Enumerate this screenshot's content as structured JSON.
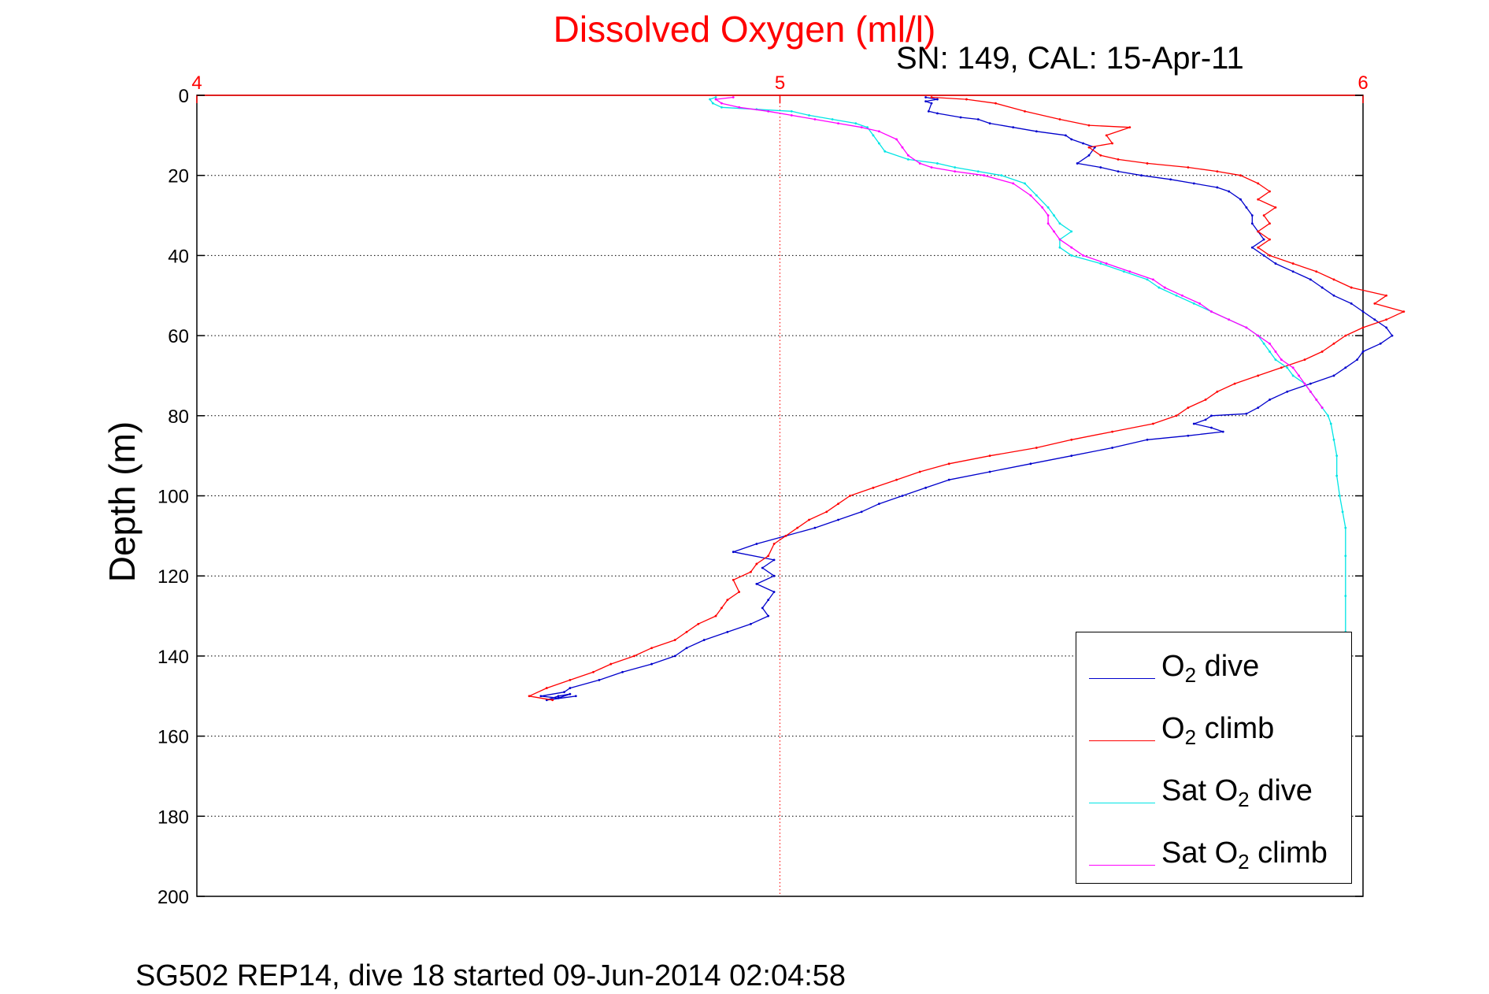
{
  "chart_data": {
    "type": "line",
    "title": "Dissolved Oxygen (ml/l)",
    "subtitle": "SN: 149, CAL: 15-Apr-11",
    "ylabel": "Depth (m)",
    "footer": "SG502 REP14, dive 18 started 09-Jun-2014 02:04:58",
    "xlim": [
      4,
      6
    ],
    "ylim": [
      0,
      200
    ],
    "y_reversed": true,
    "x_axis_position": "top",
    "x_ticks": [
      4,
      5,
      6
    ],
    "y_ticks": [
      0,
      20,
      40,
      60,
      80,
      100,
      120,
      140,
      160,
      180,
      200
    ],
    "grid": true,
    "legend_position": "bottom-right",
    "colors": {
      "title": "#ff0000",
      "x_axis": "#ff0000"
    },
    "series": [
      {
        "name": "O2 dive",
        "legend": {
          "pre": "O",
          "sub": "2",
          "post": " dive"
        },
        "color": "#0000cc",
        "points": [
          [
            5.25,
            0.5
          ],
          [
            5.27,
            1
          ],
          [
            5.25,
            1.5
          ],
          [
            5.26,
            2
          ],
          [
            5.255,
            4
          ],
          [
            5.27,
            4.5
          ],
          [
            5.31,
            5.5
          ],
          [
            5.34,
            6
          ],
          [
            5.36,
            7
          ],
          [
            5.4,
            8
          ],
          [
            5.44,
            9
          ],
          [
            5.49,
            10
          ],
          [
            5.5,
            11
          ],
          [
            5.52,
            12
          ],
          [
            5.54,
            13
          ],
          [
            5.53,
            15
          ],
          [
            5.51,
            17
          ],
          [
            5.55,
            18
          ],
          [
            5.58,
            19
          ],
          [
            5.62,
            20
          ],
          [
            5.67,
            21
          ],
          [
            5.71,
            22
          ],
          [
            5.75,
            23
          ],
          [
            5.77,
            24
          ],
          [
            5.79,
            26
          ],
          [
            5.8,
            28
          ],
          [
            5.81,
            30
          ],
          [
            5.81,
            32
          ],
          [
            5.82,
            34
          ],
          [
            5.83,
            36
          ],
          [
            5.81,
            38
          ],
          [
            5.83,
            40
          ],
          [
            5.85,
            42
          ],
          [
            5.88,
            44
          ],
          [
            5.91,
            46
          ],
          [
            5.93,
            48
          ],
          [
            5.95,
            50
          ],
          [
            5.98,
            52
          ],
          [
            6.0,
            54
          ],
          [
            6.02,
            56
          ],
          [
            6.04,
            58
          ],
          [
            6.05,
            60
          ],
          [
            6.03,
            62
          ],
          [
            6.0,
            64
          ],
          [
            5.99,
            66
          ],
          [
            5.97,
            68
          ],
          [
            5.95,
            70
          ],
          [
            5.91,
            72
          ],
          [
            5.87,
            74
          ],
          [
            5.84,
            76
          ],
          [
            5.82,
            78
          ],
          [
            5.8,
            79.5
          ],
          [
            5.74,
            80
          ],
          [
            5.73,
            81
          ],
          [
            5.71,
            82
          ],
          [
            5.74,
            83
          ],
          [
            5.76,
            84
          ],
          [
            5.7,
            85
          ],
          [
            5.63,
            86
          ],
          [
            5.57,
            88
          ],
          [
            5.5,
            90
          ],
          [
            5.43,
            92
          ],
          [
            5.36,
            94
          ],
          [
            5.29,
            96
          ],
          [
            5.25,
            98
          ],
          [
            5.21,
            100
          ],
          [
            5.17,
            102
          ],
          [
            5.14,
            104
          ],
          [
            5.1,
            106
          ],
          [
            5.06,
            108
          ],
          [
            5.01,
            110
          ],
          [
            4.96,
            112
          ],
          [
            4.92,
            114
          ],
          [
            4.99,
            116
          ],
          [
            4.97,
            118
          ],
          [
            4.99,
            120
          ],
          [
            4.96,
            122
          ],
          [
            4.99,
            124
          ],
          [
            4.98,
            126
          ],
          [
            4.97,
            128
          ],
          [
            4.98,
            130
          ],
          [
            4.95,
            132
          ],
          [
            4.91,
            134
          ],
          [
            4.87,
            136
          ],
          [
            4.84,
            138
          ],
          [
            4.82,
            140
          ],
          [
            4.78,
            142
          ],
          [
            4.73,
            144
          ],
          [
            4.69,
            146
          ],
          [
            4.64,
            148
          ],
          [
            4.63,
            149
          ],
          [
            4.59,
            150
          ],
          [
            4.62,
            150.5
          ],
          [
            4.64,
            149.5
          ],
          [
            4.62,
            150
          ],
          [
            4.6,
            151
          ],
          [
            4.65,
            150
          ]
        ]
      },
      {
        "name": "O2 climb",
        "legend": {
          "pre": "O",
          "sub": "2",
          "post": " climb"
        },
        "color": "#ff0000",
        "points": [
          [
            4.61,
            151
          ],
          [
            4.57,
            150
          ],
          [
            4.6,
            148
          ],
          [
            4.64,
            146
          ],
          [
            4.68,
            144
          ],
          [
            4.71,
            142
          ],
          [
            4.75,
            140
          ],
          [
            4.78,
            138
          ],
          [
            4.82,
            136
          ],
          [
            4.84,
            134
          ],
          [
            4.86,
            132
          ],
          [
            4.89,
            130
          ],
          [
            4.9,
            128
          ],
          [
            4.91,
            126
          ],
          [
            4.93,
            124
          ],
          [
            4.92,
            121
          ],
          [
            4.95,
            119
          ],
          [
            4.96,
            117
          ],
          [
            4.98,
            115
          ],
          [
            4.99,
            112
          ],
          [
            5.01,
            110
          ],
          [
            5.03,
            108
          ],
          [
            5.05,
            106
          ],
          [
            5.08,
            104
          ],
          [
            5.1,
            102
          ],
          [
            5.12,
            100
          ],
          [
            5.16,
            98
          ],
          [
            5.2,
            96
          ],
          [
            5.24,
            94
          ],
          [
            5.29,
            92
          ],
          [
            5.36,
            90
          ],
          [
            5.44,
            88
          ],
          [
            5.5,
            86
          ],
          [
            5.57,
            84
          ],
          [
            5.64,
            82
          ],
          [
            5.68,
            80
          ],
          [
            5.7,
            78
          ],
          [
            5.73,
            76
          ],
          [
            5.75,
            74
          ],
          [
            5.78,
            72
          ],
          [
            5.82,
            70
          ],
          [
            5.86,
            68
          ],
          [
            5.9,
            66
          ],
          [
            5.93,
            64
          ],
          [
            5.95,
            62
          ],
          [
            5.97,
            60
          ],
          [
            6.0,
            58
          ],
          [
            6.04,
            56
          ],
          [
            6.07,
            54
          ],
          [
            6.02,
            52
          ],
          [
            6.04,
            50
          ],
          [
            5.98,
            48
          ],
          [
            5.95,
            46
          ],
          [
            5.92,
            44
          ],
          [
            5.88,
            42
          ],
          [
            5.84,
            40
          ],
          [
            5.82,
            38
          ],
          [
            5.84,
            36
          ],
          [
            5.82,
            34
          ],
          [
            5.84,
            32
          ],
          [
            5.83,
            30
          ],
          [
            5.85,
            28
          ],
          [
            5.82,
            26
          ],
          [
            5.84,
            24
          ],
          [
            5.82,
            22
          ],
          [
            5.79,
            20
          ],
          [
            5.75,
            19
          ],
          [
            5.7,
            18
          ],
          [
            5.63,
            17
          ],
          [
            5.58,
            16
          ],
          [
            5.55,
            15
          ],
          [
            5.53,
            13
          ],
          [
            5.57,
            12
          ],
          [
            5.56,
            10
          ],
          [
            5.6,
            8
          ],
          [
            5.53,
            7.5
          ],
          [
            5.48,
            6
          ],
          [
            5.42,
            4
          ],
          [
            5.37,
            2
          ],
          [
            5.32,
            1
          ],
          [
            5.26,
            0.5
          ]
        ]
      },
      {
        "name": "Sat O2 dive",
        "legend": {
          "pre": "Sat O",
          "sub": "2",
          "post": " dive"
        },
        "color": "#00e5e5",
        "points": [
          [
            4.89,
            0.5
          ],
          [
            4.88,
            1
          ],
          [
            4.885,
            2
          ],
          [
            4.9,
            3
          ],
          [
            4.96,
            3.5
          ],
          [
            5.02,
            4
          ],
          [
            5.05,
            5
          ],
          [
            5.09,
            6
          ],
          [
            5.13,
            7
          ],
          [
            5.15,
            8
          ],
          [
            5.16,
            10
          ],
          [
            5.17,
            12
          ],
          [
            5.18,
            14
          ],
          [
            5.22,
            16
          ],
          [
            5.27,
            17
          ],
          [
            5.3,
            18
          ],
          [
            5.34,
            19
          ],
          [
            5.38,
            20
          ],
          [
            5.42,
            22
          ],
          [
            5.44,
            25
          ],
          [
            5.46,
            28
          ],
          [
            5.47,
            30
          ],
          [
            5.48,
            32
          ],
          [
            5.5,
            34
          ],
          [
            5.48,
            36
          ],
          [
            5.48,
            38
          ],
          [
            5.5,
            40
          ],
          [
            5.55,
            42
          ],
          [
            5.59,
            44
          ],
          [
            5.63,
            46
          ],
          [
            5.65,
            48
          ],
          [
            5.68,
            50
          ],
          [
            5.71,
            52
          ],
          [
            5.74,
            54
          ],
          [
            5.77,
            56
          ],
          [
            5.8,
            58
          ],
          [
            5.82,
            60
          ],
          [
            5.83,
            62
          ],
          [
            5.84,
            64
          ],
          [
            5.85,
            66
          ],
          [
            5.87,
            68
          ],
          [
            5.88,
            70
          ],
          [
            5.9,
            72
          ],
          [
            5.91,
            74
          ],
          [
            5.92,
            76
          ],
          [
            5.93,
            78
          ],
          [
            5.94,
            80
          ],
          [
            5.945,
            82
          ],
          [
            5.95,
            86
          ],
          [
            5.955,
            90
          ],
          [
            5.955,
            95
          ],
          [
            5.96,
            100
          ],
          [
            5.965,
            104
          ],
          [
            5.97,
            108
          ],
          [
            5.97,
            115
          ],
          [
            5.97,
            125
          ],
          [
            5.97,
            134
          ]
        ]
      },
      {
        "name": "Sat O2 climb",
        "legend": {
          "pre": "Sat O",
          "sub": "2",
          "post": " climb"
        },
        "color": "#ff00ff",
        "points": [
          [
            5.93,
            78
          ],
          [
            5.92,
            76
          ],
          [
            5.91,
            74
          ],
          [
            5.9,
            72
          ],
          [
            5.89,
            70
          ],
          [
            5.88,
            68
          ],
          [
            5.86,
            66
          ],
          [
            5.85,
            64
          ],
          [
            5.84,
            62
          ],
          [
            5.82,
            60
          ],
          [
            5.8,
            58
          ],
          [
            5.77,
            56
          ],
          [
            5.74,
            54
          ],
          [
            5.72,
            52
          ],
          [
            5.69,
            50
          ],
          [
            5.66,
            48
          ],
          [
            5.64,
            46
          ],
          [
            5.6,
            44
          ],
          [
            5.56,
            42
          ],
          [
            5.52,
            40
          ],
          [
            5.5,
            38
          ],
          [
            5.48,
            36
          ],
          [
            5.47,
            34
          ],
          [
            5.46,
            32
          ],
          [
            5.46,
            30
          ],
          [
            5.45,
            28
          ],
          [
            5.43,
            25
          ],
          [
            5.4,
            22
          ],
          [
            5.35,
            20
          ],
          [
            5.3,
            19
          ],
          [
            5.26,
            18
          ],
          [
            5.24,
            17
          ],
          [
            5.22,
            15
          ],
          [
            5.21,
            13
          ],
          [
            5.2,
            11
          ],
          [
            5.17,
            9
          ],
          [
            5.14,
            8
          ],
          [
            5.1,
            7
          ],
          [
            5.06,
            6
          ],
          [
            5.02,
            5
          ],
          [
            4.98,
            4
          ],
          [
            4.93,
            3
          ],
          [
            4.9,
            2
          ],
          [
            4.89,
            1
          ],
          [
            4.92,
            0.5
          ]
        ]
      }
    ]
  }
}
